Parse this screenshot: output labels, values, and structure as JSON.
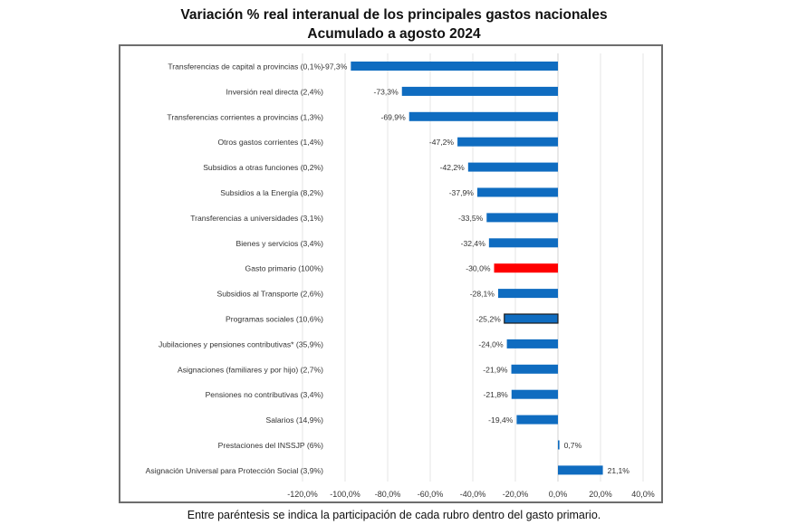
{
  "chart_data": {
    "type": "bar",
    "orientation": "horizontal",
    "title": "Variación % real interanual de los principales gastos nacionales",
    "subtitle": "Acumulado a agosto 2024",
    "xlabel": "",
    "ylabel": "",
    "xlim": [
      -120,
      40
    ],
    "x_ticks": [
      -120,
      -100,
      -80,
      -60,
      -40,
      -20,
      0,
      20,
      40
    ],
    "x_tick_labels": [
      "-120,0%",
      "-100,0%",
      "-80,0%",
      "-60,0%",
      "-40,0%",
      "-20,0%",
      "0,0%",
      "20,0%",
      "40,0%"
    ],
    "grid": "vertical",
    "legend": "none",
    "categories": [
      "Transferencias de capital a provincias (0,1%)",
      "Inversión real directa (2,4%)",
      "Transferencias corrientes a provincias (1,3%)",
      "Otros gastos corrientes (1,4%)",
      "Subsidios a otras funciones (0,2%)",
      "Subsidios a la Energía (8,2%)",
      "Transferencias a universidades (3,1%)",
      "Bienes y servicios (3,4%)",
      "Gasto primario (100%)",
      "Subsidios al Transporte (2,6%)",
      "Programas sociales (10,6%)",
      "Jubilaciones y pensiones contributivas* (35,9%)",
      "Asignaciones (familiares y por hijo) (2,7%)",
      "Pensiones no contributivas (3,4%)",
      "Salarios (14,9%)",
      "Prestaciones del INSSJP (6%)",
      "Asignación Universal para Protección Social (3,9%)"
    ],
    "values": [
      -97.3,
      -73.3,
      -69.9,
      -47.2,
      -42.2,
      -37.9,
      -33.5,
      -32.4,
      -30.0,
      -28.1,
      -25.2,
      -24.0,
      -21.9,
      -21.8,
      -19.4,
      0.7,
      21.1
    ],
    "data_labels": [
      "-97,3%",
      "-73,3%",
      "-69,9%",
      "-47,2%",
      "-42,2%",
      "-37,9%",
      "-33,5%",
      "-32,4%",
      "-30,0%",
      "-28,1%",
      "-25,2%",
      "-24,0%",
      "-21,9%",
      "-21,8%",
      "-19,4%",
      "0,7%",
      "21,1%"
    ],
    "highlight": {
      "Gasto primario (100%)": "red",
      "Programas sociales (10,6%)": "dark-outline"
    },
    "colors": {
      "bar": "#0f6cc0",
      "highlight": "#ff0000",
      "outline": "#1a1a1a",
      "grid": "#e6e6e6"
    }
  },
  "footnote": "Entre paréntesis se indica la participación de cada rubro dentro del gasto primario."
}
